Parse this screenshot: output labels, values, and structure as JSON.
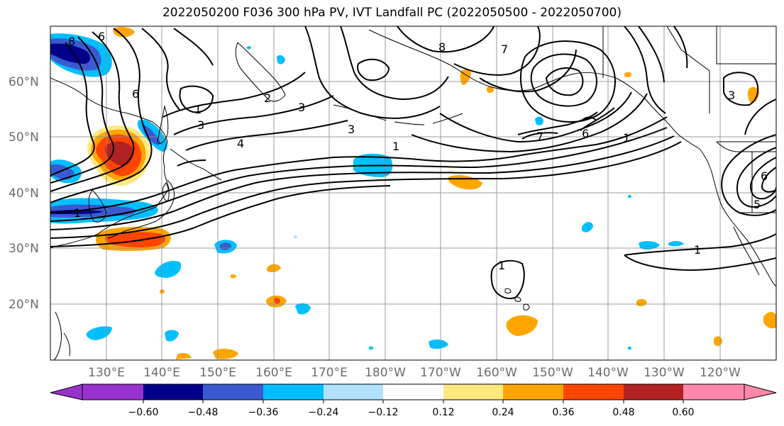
{
  "title": "2022050200 F036 300 hPa PV, IVT Landfall PC (2022050500 - 2022050700)",
  "lat_labels": [
    "60°N",
    "50°N",
    "40°N",
    "30°N",
    "20°N"
  ],
  "lon_labels": [
    "130°E",
    "140°E",
    "150°E",
    "160°E",
    "170°E",
    "180°W",
    "170°W",
    "160°W",
    "150°W",
    "140°W",
    "130°W",
    "120°W"
  ],
  "colorbar": {
    "ticks": [
      "−0.60",
      "−0.48",
      "−0.36",
      "−0.24",
      "−0.12",
      "0.12",
      "0.24",
      "0.36",
      "0.48",
      "0.60"
    ],
    "colors": [
      "#9932cc",
      "#00008b",
      "#3a5bd0",
      "#00bfff",
      "#b0e2ff",
      "#ffffff",
      "#ffe97f",
      "#ffa500",
      "#ff4500",
      "#b22222",
      "#ff88aa"
    ]
  },
  "contour_labels": [
    "8",
    "6",
    "6",
    "1",
    "1",
    "2",
    "3",
    "3",
    "4",
    "3",
    "1",
    "1",
    "8",
    "7",
    "7",
    "6",
    "1",
    "3",
    "6",
    "5",
    "1"
  ],
  "colors": {
    "orange": "#ffa500",
    "red": "#ff4500",
    "darkred": "#b22222",
    "yellow": "#ffe97f",
    "cyan": "#00bfff",
    "lightblue": "#b0e2ff",
    "blue": "#3a5bd0",
    "navy": "#00008b"
  }
}
